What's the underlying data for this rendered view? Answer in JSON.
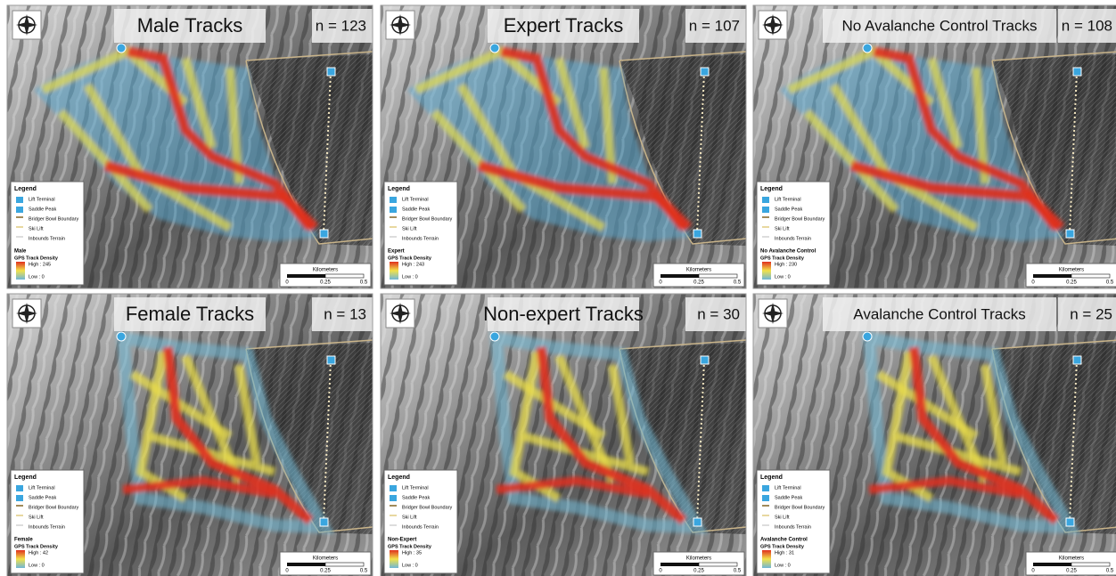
{
  "legend": {
    "title": "Legend",
    "lift_terminal": "Lift Terminal",
    "saddle_peak": "Saddle Peak",
    "boundary": "Bridger Bowl Boundary",
    "ski_lift": "Ski Lift",
    "inbounds": "Inbounds Terrain",
    "density": "GPS Track Density",
    "low": "Low : 0"
  },
  "scale": {
    "unit": "Kilometers",
    "ticks": [
      "0",
      "0.25",
      "0.5"
    ]
  },
  "panels": [
    {
      "title": "Male Tracks",
      "n": "n = 123",
      "group": "Male",
      "high": "High : 245"
    },
    {
      "title": "Expert Tracks",
      "n": "n = 107",
      "group": "Expert",
      "high": "High : 243"
    },
    {
      "title": "No Avalanche Control Tracks",
      "n": "n = 108",
      "group": "No Avalanche Control",
      "high": "High : 230"
    },
    {
      "title": "Female Tracks",
      "n": "n = 13",
      "group": "Female",
      "high": "High : 42"
    },
    {
      "title": "Non-expert Tracks",
      "n": "n = 30",
      "group": "Non-Expert",
      "high": "High : 35"
    },
    {
      "title": "Avalanche Control Tracks",
      "n": "n = 25",
      "group": "Avalanche Control",
      "high": "High : 31"
    }
  ]
}
